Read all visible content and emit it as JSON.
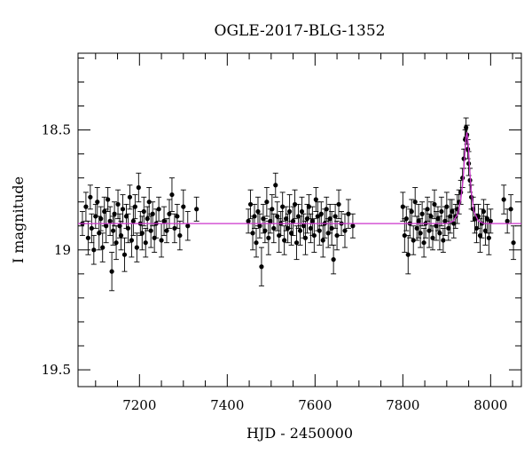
{
  "chart_data": {
    "type": "scatter",
    "title": "OGLE-2017-BLG-1352",
    "xlabel": "HJD - 2450000",
    "ylabel": "I magnitude",
    "xlim": [
      7060,
      8070
    ],
    "ylim": [
      19.57,
      18.18
    ],
    "y_inverted": true,
    "x_ticks": [
      7200,
      7400,
      7600,
      7800,
      8000
    ],
    "x_tick_labels": [
      "7200",
      "7400",
      "7600",
      "7800",
      "8000"
    ],
    "y_ticks": [
      18.5,
      19,
      19.5
    ],
    "y_tick_labels": [
      "18.5",
      "19",
      "19.5"
    ],
    "grid": false,
    "colors": {
      "data": "#000000",
      "model": "#cc33cc"
    },
    "series": [
      {
        "kind": "points-with-errorbars",
        "points": [
          {
            "x": 7070,
            "y": 18.89,
            "e": 0.05
          },
          {
            "x": 7078,
            "y": 18.82,
            "e": 0.06
          },
          {
            "x": 7083,
            "y": 18.95,
            "e": 0.07
          },
          {
            "x": 7088,
            "y": 18.78,
            "e": 0.05
          },
          {
            "x": 7091,
            "y": 18.91,
            "e": 0.06
          },
          {
            "x": 7096,
            "y": 19.0,
            "e": 0.06
          },
          {
            "x": 7100,
            "y": 18.86,
            "e": 0.05
          },
          {
            "x": 7104,
            "y": 18.8,
            "e": 0.06
          },
          {
            "x": 7108,
            "y": 18.93,
            "e": 0.07
          },
          {
            "x": 7112,
            "y": 18.87,
            "e": 0.05
          },
          {
            "x": 7116,
            "y": 18.99,
            "e": 0.06
          },
          {
            "x": 7120,
            "y": 18.84,
            "e": 0.06
          },
          {
            "x": 7124,
            "y": 18.9,
            "e": 0.07
          },
          {
            "x": 7128,
            "y": 18.79,
            "e": 0.05
          },
          {
            "x": 7133,
            "y": 18.88,
            "e": 0.06
          },
          {
            "x": 7137,
            "y": 19.09,
            "e": 0.08
          },
          {
            "x": 7140,
            "y": 18.92,
            "e": 0.06
          },
          {
            "x": 7143,
            "y": 18.85,
            "e": 0.05
          },
          {
            "x": 7147,
            "y": 18.97,
            "e": 0.07
          },
          {
            "x": 7151,
            "y": 18.81,
            "e": 0.06
          },
          {
            "x": 7155,
            "y": 18.9,
            "e": 0.05
          },
          {
            "x": 7158,
            "y": 18.94,
            "e": 0.06
          },
          {
            "x": 7162,
            "y": 18.83,
            "e": 0.06
          },
          {
            "x": 7166,
            "y": 19.02,
            "e": 0.07
          },
          {
            "x": 7170,
            "y": 18.86,
            "e": 0.05
          },
          {
            "x": 7174,
            "y": 18.91,
            "e": 0.06
          },
          {
            "x": 7178,
            "y": 18.78,
            "e": 0.05
          },
          {
            "x": 7182,
            "y": 18.96,
            "e": 0.07
          },
          {
            "x": 7186,
            "y": 18.88,
            "e": 0.06
          },
          {
            "x": 7190,
            "y": 18.82,
            "e": 0.05
          },
          {
            "x": 7194,
            "y": 18.99,
            "e": 0.06
          },
          {
            "x": 7198,
            "y": 18.74,
            "e": 0.06
          },
          {
            "x": 7202,
            "y": 18.89,
            "e": 0.05
          },
          {
            "x": 7206,
            "y": 18.93,
            "e": 0.07
          },
          {
            "x": 7210,
            "y": 18.84,
            "e": 0.06
          },
          {
            "x": 7214,
            "y": 18.97,
            "e": 0.06
          },
          {
            "x": 7218,
            "y": 18.87,
            "e": 0.05
          },
          {
            "x": 7222,
            "y": 18.8,
            "e": 0.06
          },
          {
            "x": 7226,
            "y": 18.92,
            "e": 0.07
          },
          {
            "x": 7230,
            "y": 18.85,
            "e": 0.05
          },
          {
            "x": 7234,
            "y": 18.95,
            "e": 0.06
          },
          {
            "x": 7238,
            "y": 18.89,
            "e": 0.06
          },
          {
            "x": 7244,
            "y": 18.83,
            "e": 0.05
          },
          {
            "x": 7250,
            "y": 18.96,
            "e": 0.07
          },
          {
            "x": 7256,
            "y": 18.88,
            "e": 0.06
          },
          {
            "x": 7262,
            "y": 18.92,
            "e": 0.05
          },
          {
            "x": 7268,
            "y": 18.85,
            "e": 0.06
          },
          {
            "x": 7274,
            "y": 18.77,
            "e": 0.07
          },
          {
            "x": 7280,
            "y": 18.91,
            "e": 0.06
          },
          {
            "x": 7286,
            "y": 18.86,
            "e": 0.05
          },
          {
            "x": 7292,
            "y": 18.94,
            "e": 0.06
          },
          {
            "x": 7300,
            "y": 18.82,
            "e": 0.07
          },
          {
            "x": 7310,
            "y": 18.9,
            "e": 0.06
          },
          {
            "x": 7330,
            "y": 18.83,
            "e": 0.05
          },
          {
            "x": 7448,
            "y": 18.88,
            "e": 0.05
          },
          {
            "x": 7453,
            "y": 18.81,
            "e": 0.06
          },
          {
            "x": 7458,
            "y": 18.93,
            "e": 0.07
          },
          {
            "x": 7462,
            "y": 18.86,
            "e": 0.05
          },
          {
            "x": 7466,
            "y": 18.97,
            "e": 0.06
          },
          {
            "x": 7470,
            "y": 18.84,
            "e": 0.06
          },
          {
            "x": 7474,
            "y": 18.9,
            "e": 0.05
          },
          {
            "x": 7478,
            "y": 19.07,
            "e": 0.08
          },
          {
            "x": 7482,
            "y": 18.87,
            "e": 0.06
          },
          {
            "x": 7486,
            "y": 18.92,
            "e": 0.05
          },
          {
            "x": 7490,
            "y": 18.8,
            "e": 0.06
          },
          {
            "x": 7494,
            "y": 18.95,
            "e": 0.07
          },
          {
            "x": 7498,
            "y": 18.88,
            "e": 0.05
          },
          {
            "x": 7502,
            "y": 18.83,
            "e": 0.06
          },
          {
            "x": 7506,
            "y": 18.91,
            "e": 0.06
          },
          {
            "x": 7510,
            "y": 18.73,
            "e": 0.05
          },
          {
            "x": 7514,
            "y": 18.86,
            "e": 0.06
          },
          {
            "x": 7518,
            "y": 18.94,
            "e": 0.07
          },
          {
            "x": 7522,
            "y": 18.89,
            "e": 0.05
          },
          {
            "x": 7526,
            "y": 18.82,
            "e": 0.06
          },
          {
            "x": 7530,
            "y": 18.96,
            "e": 0.06
          },
          {
            "x": 7534,
            "y": 18.87,
            "e": 0.05
          },
          {
            "x": 7538,
            "y": 18.91,
            "e": 0.06
          },
          {
            "x": 7542,
            "y": 18.84,
            "e": 0.07
          },
          {
            "x": 7546,
            "y": 18.93,
            "e": 0.05
          },
          {
            "x": 7550,
            "y": 18.88,
            "e": 0.06
          },
          {
            "x": 7554,
            "y": 18.81,
            "e": 0.06
          },
          {
            "x": 7558,
            "y": 18.97,
            "e": 0.07
          },
          {
            "x": 7562,
            "y": 18.86,
            "e": 0.05
          },
          {
            "x": 7566,
            "y": 18.92,
            "e": 0.06
          },
          {
            "x": 7570,
            "y": 18.84,
            "e": 0.06
          },
          {
            "x": 7574,
            "y": 18.9,
            "e": 0.05
          },
          {
            "x": 7578,
            "y": 18.95,
            "e": 0.07
          },
          {
            "x": 7582,
            "y": 18.87,
            "e": 0.06
          },
          {
            "x": 7586,
            "y": 18.82,
            "e": 0.05
          },
          {
            "x": 7590,
            "y": 18.91,
            "e": 0.06
          },
          {
            "x": 7594,
            "y": 18.88,
            "e": 0.06
          },
          {
            "x": 7598,
            "y": 18.94,
            "e": 0.07
          },
          {
            "x": 7602,
            "y": 18.79,
            "e": 0.05
          },
          {
            "x": 7606,
            "y": 18.86,
            "e": 0.06
          },
          {
            "x": 7610,
            "y": 18.92,
            "e": 0.06
          },
          {
            "x": 7614,
            "y": 18.85,
            "e": 0.05
          },
          {
            "x": 7618,
            "y": 18.96,
            "e": 0.07
          },
          {
            "x": 7622,
            "y": 18.89,
            "e": 0.06
          },
          {
            "x": 7626,
            "y": 18.83,
            "e": 0.05
          },
          {
            "x": 7630,
            "y": 18.93,
            "e": 0.06
          },
          {
            "x": 7634,
            "y": 18.87,
            "e": 0.06
          },
          {
            "x": 7638,
            "y": 18.91,
            "e": 0.07
          },
          {
            "x": 7642,
            "y": 19.04,
            "e": 0.06
          },
          {
            "x": 7646,
            "y": 18.86,
            "e": 0.05
          },
          {
            "x": 7650,
            "y": 18.94,
            "e": 0.06
          },
          {
            "x": 7654,
            "y": 18.81,
            "e": 0.06
          },
          {
            "x": 7660,
            "y": 18.89,
            "e": 0.05
          },
          {
            "x": 7668,
            "y": 18.92,
            "e": 0.07
          },
          {
            "x": 7676,
            "y": 18.85,
            "e": 0.06
          },
          {
            "x": 7686,
            "y": 18.9,
            "e": 0.05
          },
          {
            "x": 7800,
            "y": 18.82,
            "e": 0.06
          },
          {
            "x": 7804,
            "y": 18.94,
            "e": 0.07
          },
          {
            "x": 7808,
            "y": 18.87,
            "e": 0.05
          },
          {
            "x": 7812,
            "y": 19.02,
            "e": 0.08
          },
          {
            "x": 7816,
            "y": 18.89,
            "e": 0.06
          },
          {
            "x": 7820,
            "y": 18.84,
            "e": 0.05
          },
          {
            "x": 7824,
            "y": 18.96,
            "e": 0.06
          },
          {
            "x": 7828,
            "y": 18.8,
            "e": 0.06
          },
          {
            "x": 7832,
            "y": 18.91,
            "e": 0.05
          },
          {
            "x": 7836,
            "y": 18.88,
            "e": 0.07
          },
          {
            "x": 7840,
            "y": 18.93,
            "e": 0.06
          },
          {
            "x": 7844,
            "y": 18.85,
            "e": 0.05
          },
          {
            "x": 7848,
            "y": 18.97,
            "e": 0.06
          },
          {
            "x": 7852,
            "y": 18.89,
            "e": 0.06
          },
          {
            "x": 7856,
            "y": 18.83,
            "e": 0.05
          },
          {
            "x": 7860,
            "y": 18.92,
            "e": 0.07
          },
          {
            "x": 7864,
            "y": 18.86,
            "e": 0.06
          },
          {
            "x": 7868,
            "y": 18.95,
            "e": 0.05
          },
          {
            "x": 7872,
            "y": 18.81,
            "e": 0.06
          },
          {
            "x": 7876,
            "y": 18.9,
            "e": 0.06
          },
          {
            "x": 7880,
            "y": 18.87,
            "e": 0.05
          },
          {
            "x": 7884,
            "y": 18.93,
            "e": 0.07
          },
          {
            "x": 7888,
            "y": 18.84,
            "e": 0.06
          },
          {
            "x": 7892,
            "y": 18.96,
            "e": 0.05
          },
          {
            "x": 7896,
            "y": 18.88,
            "e": 0.06
          },
          {
            "x": 7900,
            "y": 18.82,
            "e": 0.06
          },
          {
            "x": 7904,
            "y": 18.91,
            "e": 0.05
          },
          {
            "x": 7908,
            "y": 18.86,
            "e": 0.07
          },
          {
            "x": 7912,
            "y": 18.84,
            "e": 0.05
          },
          {
            "x": 7916,
            "y": 18.89,
            "e": 0.06
          },
          {
            "x": 7920,
            "y": 18.86,
            "e": 0.05
          },
          {
            "x": 7924,
            "y": 18.83,
            "e": 0.06
          },
          {
            "x": 7928,
            "y": 18.8,
            "e": 0.05
          },
          {
            "x": 7932,
            "y": 18.76,
            "e": 0.05
          },
          {
            "x": 7936,
            "y": 18.7,
            "e": 0.04
          },
          {
            "x": 7939,
            "y": 18.62,
            "e": 0.04
          },
          {
            "x": 7942,
            "y": 18.54,
            "e": 0.04
          },
          {
            "x": 7944,
            "y": 18.49,
            "e": 0.04
          },
          {
            "x": 7946,
            "y": 18.52,
            "e": 0.04
          },
          {
            "x": 7948,
            "y": 18.58,
            "e": 0.04
          },
          {
            "x": 7950,
            "y": 18.64,
            "e": 0.05
          },
          {
            "x": 7953,
            "y": 18.71,
            "e": 0.05
          },
          {
            "x": 7956,
            "y": 18.78,
            "e": 0.05
          },
          {
            "x": 7960,
            "y": 18.83,
            "e": 0.05
          },
          {
            "x": 7964,
            "y": 18.87,
            "e": 0.06
          },
          {
            "x": 7968,
            "y": 18.91,
            "e": 0.06
          },
          {
            "x": 7972,
            "y": 18.86,
            "e": 0.05
          },
          {
            "x": 7976,
            "y": 18.94,
            "e": 0.07
          },
          {
            "x": 7980,
            "y": 18.89,
            "e": 0.06
          },
          {
            "x": 7984,
            "y": 18.84,
            "e": 0.05
          },
          {
            "x": 7988,
            "y": 18.92,
            "e": 0.06
          },
          {
            "x": 7992,
            "y": 18.87,
            "e": 0.06
          },
          {
            "x": 7996,
            "y": 18.95,
            "e": 0.07
          },
          {
            "x": 8000,
            "y": 18.88,
            "e": 0.05
          },
          {
            "x": 8030,
            "y": 18.79,
            "e": 0.06
          },
          {
            "x": 8038,
            "y": 18.88,
            "e": 0.05
          },
          {
            "x": 8046,
            "y": 18.83,
            "e": 0.06
          },
          {
            "x": 8052,
            "y": 18.97,
            "e": 0.07
          }
        ]
      },
      {
        "kind": "model-curve",
        "baseline": 18.89,
        "x": [
          7060,
          7900,
          7915,
          7925,
          7932,
          7937,
          7941,
          7944,
          7946,
          7949,
          7952,
          7956,
          7962,
          7972,
          7985,
          8070
        ],
        "y": [
          18.89,
          18.89,
          18.88,
          18.85,
          18.79,
          18.71,
          18.61,
          18.53,
          18.51,
          18.56,
          18.66,
          18.76,
          18.84,
          18.88,
          18.89,
          18.89
        ]
      }
    ]
  }
}
